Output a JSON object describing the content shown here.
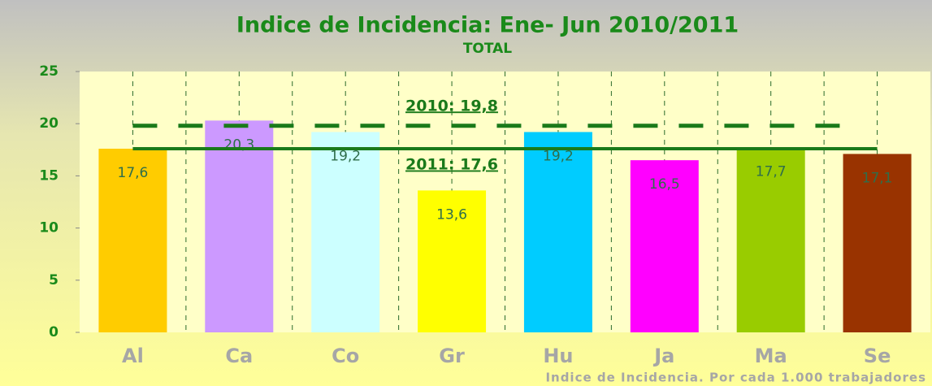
{
  "chart_data": {
    "type": "bar",
    "title": "Indice de Incidencia: Ene- Jun 2010/2011",
    "subtitle": "TOTAL",
    "note": "Indice de Incidencia. Por cada 1.000 trabajadores",
    "categories": [
      "Al",
      "Ca",
      "Co",
      "Gr",
      "Hu",
      "Ja",
      "Ma",
      "Se"
    ],
    "values": [
      17.6,
      20.3,
      19.2,
      13.6,
      19.2,
      16.5,
      17.7,
      17.1
    ],
    "value_labels": [
      "17,6",
      "20,3",
      "19,2",
      "13,6",
      "19,2",
      "16,5",
      "17,7",
      "17,1"
    ],
    "colors": [
      "#ffcc00",
      "#cc99ff",
      "#ccffff",
      "#ffff00",
      "#00ccff",
      "#ff00ff",
      "#99cc00",
      "#993300"
    ],
    "reference_lines": [
      {
        "label": "2010: 19,8",
        "value": 19.8,
        "style": "dashed",
        "color": "#1a7a1a"
      },
      {
        "label": "2011: 17,6",
        "value": 17.6,
        "style": "solid",
        "color": "#1a7a1a"
      }
    ],
    "ylim": [
      0,
      25
    ],
    "yticks": [
      0,
      5,
      10,
      15,
      20,
      25
    ]
  }
}
